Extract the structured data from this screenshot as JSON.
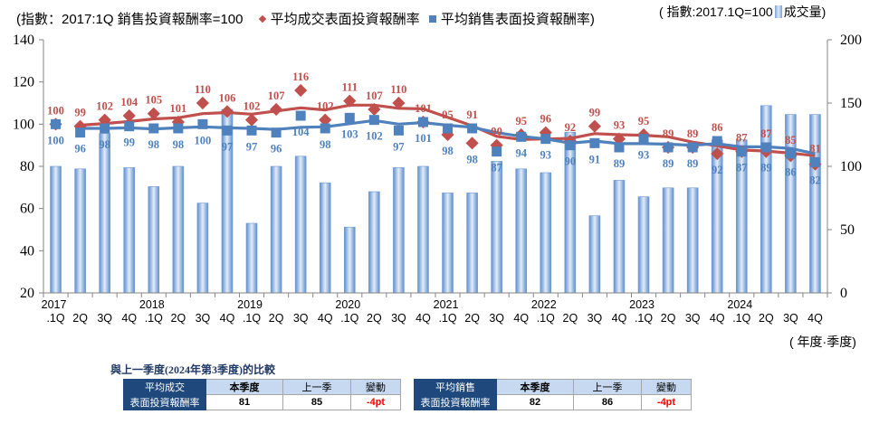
{
  "legend": {
    "index_note": "(指數：2017:1Q 銷售投資報酬率=100",
    "series1": "平均成交表面投資報酬率",
    "series2": "平均銷售表面投資報酬率)",
    "volume_note_prefix": "( 指數:2017.1Q=100",
    "volume_note_suffix": "成交量)"
  },
  "colors": {
    "deal": "#c0504d",
    "sales": "#4f81bd",
    "bar": "#4f81bd",
    "header": "#1f497d"
  },
  "chart_data": {
    "type": "bar+line",
    "left_axis": {
      "ylim": [
        20,
        140
      ],
      "ticks": [
        "20",
        "40",
        "60",
        "80",
        "100",
        "120",
        "140"
      ]
    },
    "right_axis": {
      "ylim": [
        0,
        200
      ],
      "ticks": [
        "0",
        "50",
        "100",
        "150",
        "200"
      ]
    },
    "years": [
      "2017",
      "2018",
      "2019",
      "2020",
      "2021",
      "2022",
      "2023",
      "2024"
    ],
    "quarters": [
      ".1Q",
      "2Q",
      "3Q",
      "4Q",
      ".1Q",
      "2Q",
      "3Q",
      "4Q",
      ".1Q",
      "2Q",
      "3Q",
      "4Q",
      ".1Q",
      "2Q",
      "3Q",
      "4Q",
      ".1Q",
      "2Q",
      "3Q",
      "4Q",
      ".1Q",
      "2Q",
      "3Q",
      "4Q",
      ".1Q",
      "2Q",
      "3Q",
      "4Q",
      ".1Q",
      "2Q",
      "3Q",
      "4Q"
    ],
    "xlabel": "( 年度·季度)",
    "series": [
      {
        "name": "平均成交表面投資報酬率",
        "axis": "left",
        "type": "line+marker",
        "values": [
          100,
          99,
          102,
          104,
          105,
          101,
          110,
          106,
          102,
          107,
          116,
          102,
          111,
          107,
          110,
          101,
          95,
          91,
          90,
          95,
          96,
          92,
          99,
          93,
          95,
          89,
          89,
          86,
          87,
          87,
          85,
          81
        ]
      },
      {
        "name": "平均銷售表面投資報酬率",
        "axis": "left",
        "type": "line+marker",
        "values": [
          100,
          96,
          98,
          99,
          98,
          98,
          100,
          97,
          97,
          96,
          104,
          98,
          103,
          102,
          97,
          101,
          98,
          98,
          87,
          94,
          93,
          90,
          91,
          89,
          93,
          89,
          89,
          92,
          87,
          89,
          86,
          82
        ]
      },
      {
        "name": "成交量",
        "axis": "right",
        "type": "bar",
        "values": [
          100,
          98,
          126,
          99,
          84,
          100,
          71,
          145,
          55,
          100,
          108,
          87,
          52,
          80,
          99,
          100,
          79,
          79,
          104,
          98,
          95,
          127,
          61,
          89,
          76,
          83,
          83,
          121,
          121,
          148,
          141,
          141
        ]
      }
    ]
  },
  "comparison": {
    "title": "與上一季度(2024年第3季度)的比較",
    "col_current": "本季度",
    "col_prev": "上一季",
    "col_change": "變動",
    "deal": {
      "label1": "平均成交",
      "label2": "表面投資報酬率",
      "current": "81",
      "prev": "85",
      "change": "-4pt"
    },
    "sales": {
      "label1": "平均銷售",
      "label2": "表面投資報酬率",
      "current": "82",
      "prev": "86",
      "change": "-4pt"
    }
  }
}
